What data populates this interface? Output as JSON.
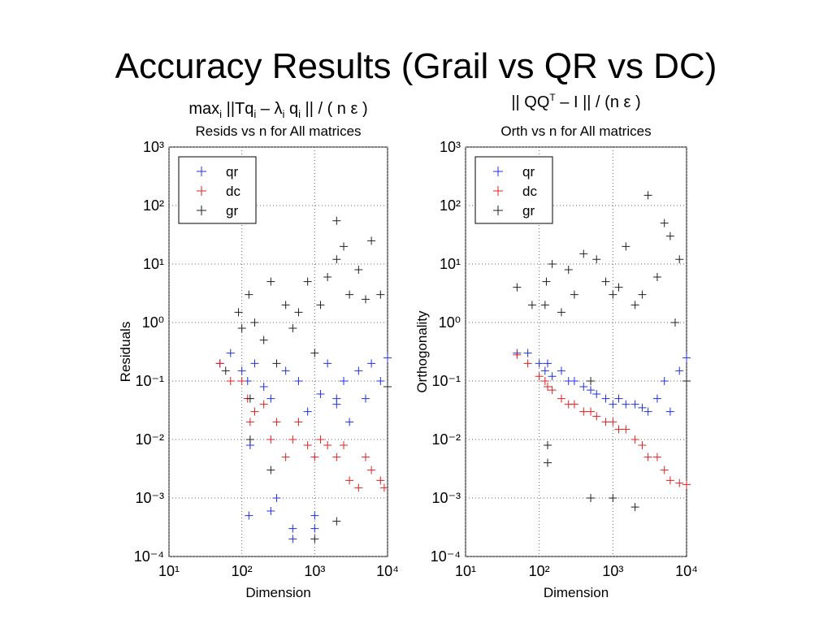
{
  "title": "Accuracy Results (Grail vs QR vs DC)",
  "chart_data": [
    {
      "type": "scatter",
      "annotation": [
        {
          "text": "max"
        },
        {
          "text": "i",
          "sub": true
        },
        {
          "text": " ||Tq"
        },
        {
          "text": "i",
          "sub": true
        },
        {
          "text": " – λ"
        },
        {
          "text": "i",
          "sub": true
        },
        {
          "text": " q"
        },
        {
          "text": "i",
          "sub": true
        },
        {
          "text": " || / ( n ε )"
        }
      ],
      "title": "Resids vs n for All matrices",
      "xlabel": "Dimension",
      "ylabel": "Residuals",
      "log_x": true,
      "log_y": true,
      "grid": true,
      "legend": "upper left",
      "xlim": [
        10,
        10000
      ],
      "ylim": [
        0.0001,
        1000
      ],
      "xticks": [
        {
          "value": 10,
          "label": "10¹"
        },
        {
          "value": 100,
          "label": "10²"
        },
        {
          "value": 1000,
          "label": "10³"
        },
        {
          "value": 10000,
          "label": "10⁴"
        }
      ],
      "yticks": [
        {
          "value": 0.0001,
          "label": "10⁻⁴"
        },
        {
          "value": 0.001,
          "label": "10⁻³"
        },
        {
          "value": 0.01,
          "label": "10⁻²"
        },
        {
          "value": 0.1,
          "label": "10⁻¹"
        },
        {
          "value": 1,
          "label": "10⁰"
        },
        {
          "value": 10,
          "label": "10¹"
        },
        {
          "value": 100,
          "label": "10²"
        },
        {
          "value": 1000,
          "label": "10³"
        }
      ],
      "series": [
        {
          "name": "qr",
          "color": "#2030e0",
          "x": [
            50,
            70,
            100,
            120,
            125,
            150,
            200,
            250,
            300,
            400,
            500,
            600,
            800,
            1000,
            1200,
            1500,
            2000,
            2500,
            3000,
            4000,
            5000,
            6000,
            8000,
            10000,
            130,
            250,
            500,
            1000,
            2000
          ],
          "values": [
            0.2,
            0.3,
            0.15,
            0.1,
            0.0005,
            0.2,
            0.08,
            0.05,
            0.001,
            0.15,
            0.0003,
            0.1,
            0.03,
            0.0005,
            0.06,
            0.2,
            0.04,
            0.1,
            0.02,
            0.15,
            0.05,
            0.2,
            0.1,
            0.25,
            0.008,
            0.0006,
            0.0002,
            0.0003,
            0.05
          ]
        },
        {
          "name": "dc",
          "color": "#e02020",
          "x": [
            50,
            70,
            100,
            120,
            130,
            150,
            200,
            250,
            300,
            400,
            500,
            600,
            800,
            1000,
            1200,
            1500,
            2000,
            2500,
            3000,
            4000,
            5000,
            6000,
            8000,
            9000
          ],
          "values": [
            0.2,
            0.1,
            0.1,
            0.05,
            0.02,
            0.03,
            0.04,
            0.01,
            0.02,
            0.005,
            0.01,
            0.02,
            0.008,
            0.005,
            0.01,
            0.008,
            0.005,
            0.008,
            0.002,
            0.0015,
            0.005,
            0.003,
            0.002,
            0.0015
          ]
        },
        {
          "name": "gr",
          "color": "#202020",
          "x": [
            60,
            90,
            100,
            125,
            130,
            150,
            200,
            250,
            300,
            400,
            500,
            600,
            800,
            1000,
            1200,
            1500,
            2000,
            2000,
            2500,
            3000,
            4000,
            5000,
            6000,
            8000,
            10000,
            130,
            250,
            1000,
            2000
          ],
          "values": [
            0.15,
            1.5,
            0.8,
            3,
            0.01,
            1,
            0.5,
            5,
            0.2,
            2,
            0.8,
            1.5,
            5,
            0.3,
            2,
            6,
            55,
            12,
            20,
            3,
            8,
            2.5,
            25,
            3,
            0.08,
            0.05,
            0.003,
            0.0002,
            0.0004
          ]
        }
      ]
    },
    {
      "type": "scatter",
      "annotation": [
        {
          "text": "|| QQ"
        },
        {
          "text": "T",
          "sup": true
        },
        {
          "text": " – I || / (n ε )"
        }
      ],
      "title": "Orth vs n for All matrices",
      "xlabel": "Dimension",
      "ylabel": "Orthogonality",
      "log_x": true,
      "log_y": true,
      "grid": true,
      "legend": "upper left",
      "xlim": [
        10,
        10000
      ],
      "ylim": [
        0.0001,
        1000
      ],
      "xticks": [
        {
          "value": 10,
          "label": "10¹"
        },
        {
          "value": 100,
          "label": "10²"
        },
        {
          "value": 1000,
          "label": "10³"
        },
        {
          "value": 10000,
          "label": "10⁴"
        }
      ],
      "yticks": [
        {
          "value": 0.0001,
          "label": "10⁻⁴"
        },
        {
          "value": 0.001,
          "label": "10⁻³"
        },
        {
          "value": 0.01,
          "label": "10⁻²"
        },
        {
          "value": 0.1,
          "label": "10⁻¹"
        },
        {
          "value": 1,
          "label": "10⁰"
        },
        {
          "value": 10,
          "label": "10¹"
        },
        {
          "value": 100,
          "label": "10²"
        },
        {
          "value": 1000,
          "label": "10³"
        }
      ],
      "series": [
        {
          "name": "qr",
          "color": "#2030e0",
          "x": [
            50,
            70,
            100,
            120,
            130,
            150,
            200,
            250,
            300,
            400,
            500,
            600,
            800,
            1000,
            1200,
            1500,
            2000,
            2500,
            3000,
            4000,
            5000,
            6000,
            8000,
            10000
          ],
          "values": [
            0.3,
            0.3,
            0.2,
            0.15,
            0.2,
            0.12,
            0.15,
            0.1,
            0.1,
            0.08,
            0.07,
            0.06,
            0.05,
            0.04,
            0.05,
            0.04,
            0.04,
            0.035,
            0.03,
            0.05,
            0.1,
            0.03,
            0.15,
            0.25
          ]
        },
        {
          "name": "dc",
          "color": "#e02020",
          "x": [
            50,
            70,
            100,
            120,
            130,
            150,
            200,
            250,
            300,
            400,
            500,
            600,
            800,
            1000,
            1200,
            1500,
            2000,
            2500,
            3000,
            4000,
            5000,
            6000,
            8000,
            10000
          ],
          "values": [
            0.28,
            0.2,
            0.12,
            0.1,
            0.08,
            0.07,
            0.05,
            0.04,
            0.04,
            0.03,
            0.03,
            0.025,
            0.02,
            0.02,
            0.015,
            0.015,
            0.01,
            0.008,
            0.005,
            0.005,
            0.003,
            0.002,
            0.0018,
            0.0017
          ]
        },
        {
          "name": "gr",
          "color": "#202020",
          "x": [
            50,
            80,
            120,
            125,
            130,
            150,
            200,
            250,
            300,
            400,
            500,
            600,
            800,
            1000,
            1200,
            1500,
            2000,
            2500,
            3000,
            4000,
            5000,
            6000,
            7000,
            8000,
            10000,
            500,
            1000,
            2000,
            130
          ],
          "values": [
            4,
            2,
            2,
            5,
            0.008,
            10,
            1.5,
            8,
            3,
            15,
            0.1,
            12,
            5,
            3,
            4,
            20,
            2,
            3,
            150,
            6,
            50,
            30,
            1,
            12,
            0.1,
            0.001,
            0.001,
            0.0007,
            0.004
          ]
        }
      ]
    }
  ]
}
